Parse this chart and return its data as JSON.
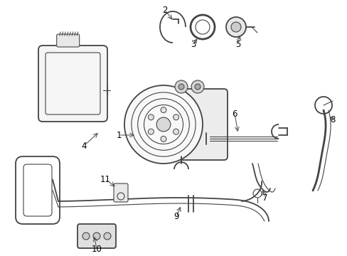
{
  "bg_color": "#ffffff",
  "line_color": "#444444",
  "label_color": "#000000",
  "fig_width": 4.89,
  "fig_height": 3.6,
  "dpi": 100
}
